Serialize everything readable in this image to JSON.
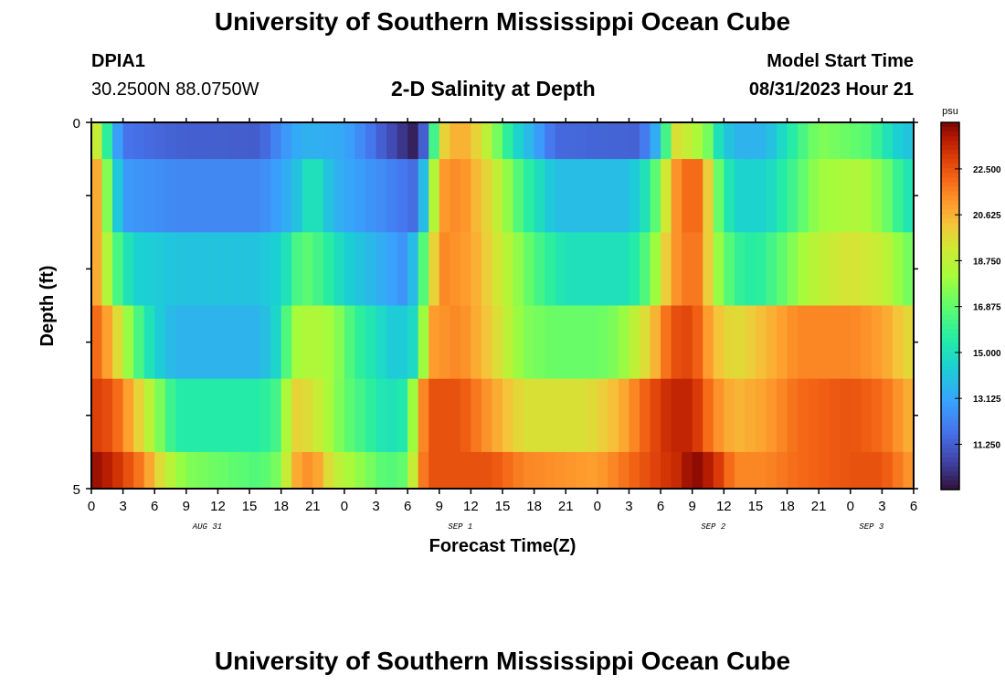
{
  "header": {
    "title_top": "University of Southern Mississippi Ocean Cube",
    "title_bottom": "University of Southern Mississippi Ocean Cube",
    "station": "DPIA1",
    "coords": "30.2500N  88.0750W",
    "plot_title": "2-D Salinity at Depth",
    "model_start_label": "Model Start Time",
    "model_start_value": "08/31/2023 Hour 21"
  },
  "chart_data": {
    "type": "heatmap",
    "title": "2-D Salinity at Depth",
    "xlabel": "Forecast Time(Z)",
    "ylabel": "Depth (ft)",
    "y_ticks": [
      "0",
      "5"
    ],
    "ylim": [
      0,
      5
    ],
    "x_tick_labels": [
      "0",
      "3",
      "6",
      "9",
      "12",
      "15",
      "18",
      "21",
      "0",
      "3",
      "6",
      "9",
      "12",
      "15",
      "18",
      "21",
      "0",
      "3",
      "6",
      "9",
      "12",
      "15",
      "18",
      "21",
      "0",
      "3",
      "6"
    ],
    "day_labels": [
      {
        "label": "AUG 31",
        "hour": 11
      },
      {
        "label": "SEP 1",
        "hour": 35
      },
      {
        "label": "SEP 2",
        "hour": 59
      },
      {
        "label": "SEP 3",
        "hour": 74
      }
    ],
    "hours_total": 78,
    "colorbar": {
      "unit": "psu",
      "min": 9.4,
      "max": 24.4,
      "ticks": [
        "22.500",
        "20.625",
        "18.750",
        "16.875",
        "15.000",
        "13.125",
        "11.250"
      ],
      "tick_values": [
        22.5,
        20.625,
        18.75,
        16.875,
        15.0,
        13.125,
        11.25
      ]
    },
    "depth_layers": [
      {
        "depth": "0-0.5",
        "knots": [
          [
            0,
            20.5
          ],
          [
            1,
            17.5
          ],
          [
            2,
            14.0
          ],
          [
            3,
            11.8
          ],
          [
            8,
            11.3
          ],
          [
            16,
            11.2
          ],
          [
            18,
            12.5
          ],
          [
            20,
            13.5
          ],
          [
            24,
            13.2
          ],
          [
            28,
            11.0
          ],
          [
            31,
            9.5
          ],
          [
            32,
            13.0
          ],
          [
            33,
            19.5
          ],
          [
            35,
            21.0
          ],
          [
            37,
            19.5
          ],
          [
            40,
            15.0
          ],
          [
            44,
            11.5
          ],
          [
            52,
            11.3
          ],
          [
            54,
            14.0
          ],
          [
            55,
            18.5
          ],
          [
            56,
            20.5
          ],
          [
            57,
            17.5
          ],
          [
            58,
            19.0
          ],
          [
            59,
            15.5
          ],
          [
            61,
            13.5
          ],
          [
            64,
            13.5
          ],
          [
            67,
            16.0
          ],
          [
            69,
            17.5
          ],
          [
            72,
            17.0
          ],
          [
            74,
            16.5
          ],
          [
            75,
            15.5
          ],
          [
            77,
            14.0
          ],
          [
            78,
            14.0
          ]
        ]
      },
      {
        "depth": "0.5-1.5",
        "knots": [
          [
            0,
            22.0
          ],
          [
            1,
            19.5
          ],
          [
            2,
            15.5
          ],
          [
            3,
            12.8
          ],
          [
            8,
            12.3
          ],
          [
            16,
            12.3
          ],
          [
            19,
            13.5
          ],
          [
            21,
            15.5
          ],
          [
            23,
            13.5
          ],
          [
            27,
            12.5
          ],
          [
            31,
            11.5
          ],
          [
            32,
            16.0
          ],
          [
            33,
            21.0
          ],
          [
            35,
            21.5
          ],
          [
            38,
            19.5
          ],
          [
            41,
            16.0
          ],
          [
            44,
            13.8
          ],
          [
            51,
            13.8
          ],
          [
            53,
            15.5
          ],
          [
            55,
            20.5
          ],
          [
            56,
            22.0
          ],
          [
            58,
            22.0
          ],
          [
            59,
            18.0
          ],
          [
            60,
            16.0
          ],
          [
            61,
            14.5
          ],
          [
            64,
            14.5
          ],
          [
            67,
            16.5
          ],
          [
            69,
            18.0
          ],
          [
            73,
            18.5
          ],
          [
            75,
            17.5
          ],
          [
            77,
            15.5
          ],
          [
            78,
            15.0
          ]
        ]
      },
      {
        "depth": "1.5-2.5",
        "knots": [
          [
            0,
            21.5
          ],
          [
            1,
            20.0
          ],
          [
            2,
            17.0
          ],
          [
            4,
            14.5
          ],
          [
            8,
            14.0
          ],
          [
            16,
            14.0
          ],
          [
            18,
            14.5
          ],
          [
            20,
            17.0
          ],
          [
            22,
            16.0
          ],
          [
            24,
            14.5
          ],
          [
            30,
            12.5
          ],
          [
            31,
            15.0
          ],
          [
            33,
            21.5
          ],
          [
            36,
            21.0
          ],
          [
            39,
            19.0
          ],
          [
            42,
            16.5
          ],
          [
            45,
            15.0
          ],
          [
            51,
            15.0
          ],
          [
            53,
            17.0
          ],
          [
            55,
            21.0
          ],
          [
            57,
            22.0
          ],
          [
            58,
            21.5
          ],
          [
            59,
            18.5
          ],
          [
            61,
            16.0
          ],
          [
            63,
            15.5
          ],
          [
            65,
            16.5
          ],
          [
            68,
            18.5
          ],
          [
            72,
            19.5
          ],
          [
            75,
            19.0
          ],
          [
            77,
            17.5
          ],
          [
            78,
            17.0
          ]
        ]
      },
      {
        "depth": "2.5-3.5",
        "knots": [
          [
            0,
            22.5
          ],
          [
            2,
            20.5
          ],
          [
            4,
            17.0
          ],
          [
            6,
            14.5
          ],
          [
            8,
            13.5
          ],
          [
            16,
            13.5
          ],
          [
            18,
            15.0
          ],
          [
            19,
            18.0
          ],
          [
            21,
            18.5
          ],
          [
            23,
            18.0
          ],
          [
            25,
            16.0
          ],
          [
            29,
            14.0
          ],
          [
            31,
            15.0
          ],
          [
            32,
            21.0
          ],
          [
            35,
            21.5
          ],
          [
            38,
            20.0
          ],
          [
            41,
            17.5
          ],
          [
            44,
            17.0
          ],
          [
            48,
            17.0
          ],
          [
            50,
            17.5
          ],
          [
            53,
            20.0
          ],
          [
            55,
            22.5
          ],
          [
            57,
            22.8
          ],
          [
            59,
            20.5
          ],
          [
            61,
            19.5
          ],
          [
            64,
            20.5
          ],
          [
            67,
            21.5
          ],
          [
            72,
            21.5
          ],
          [
            75,
            21.0
          ],
          [
            77,
            20.0
          ],
          [
            78,
            19.5
          ]
        ]
      },
      {
        "depth": "3.5-4.5",
        "knots": [
          [
            0,
            23.0
          ],
          [
            2,
            22.5
          ],
          [
            4,
            20.5
          ],
          [
            6,
            18.0
          ],
          [
            8,
            15.5
          ],
          [
            16,
            15.5
          ],
          [
            18,
            16.5
          ],
          [
            19,
            20.0
          ],
          [
            21,
            19.5
          ],
          [
            24,
            17.0
          ],
          [
            26,
            16.0
          ],
          [
            28,
            15.0
          ],
          [
            30,
            15.5
          ],
          [
            31,
            20.5
          ],
          [
            32,
            22.5
          ],
          [
            35,
            22.5
          ],
          [
            38,
            21.0
          ],
          [
            41,
            19.5
          ],
          [
            47,
            19.5
          ],
          [
            50,
            20.5
          ],
          [
            53,
            22.5
          ],
          [
            55,
            23.5
          ],
          [
            57,
            23.5
          ],
          [
            59,
            21.5
          ],
          [
            61,
            20.5
          ],
          [
            64,
            21.0
          ],
          [
            67,
            22.0
          ],
          [
            72,
            22.5
          ],
          [
            75,
            22.0
          ],
          [
            77,
            21.0
          ],
          [
            78,
            20.5
          ]
        ]
      },
      {
        "depth": "4.5-5",
        "knots": [
          [
            0,
            24.2
          ],
          [
            2,
            23.5
          ],
          [
            5,
            21.5
          ],
          [
            7,
            19.0
          ],
          [
            9,
            17.5
          ],
          [
            16,
            16.5
          ],
          [
            18,
            17.5
          ],
          [
            19,
            20.5
          ],
          [
            21,
            21.5
          ],
          [
            23,
            19.0
          ],
          [
            26,
            17.5
          ],
          [
            28,
            16.5
          ],
          [
            30,
            17.0
          ],
          [
            31,
            21.0
          ],
          [
            32,
            22.5
          ],
          [
            38,
            22.5
          ],
          [
            41,
            21.5
          ],
          [
            48,
            21.0
          ],
          [
            51,
            22.0
          ],
          [
            54,
            23.0
          ],
          [
            56,
            23.5
          ],
          [
            57,
            24.4
          ],
          [
            59,
            23.5
          ],
          [
            61,
            21.5
          ],
          [
            64,
            21.5
          ],
          [
            67,
            22.0
          ],
          [
            72,
            22.5
          ],
          [
            75,
            22.5
          ],
          [
            77,
            21.5
          ],
          [
            78,
            21.0
          ]
        ]
      }
    ]
  }
}
